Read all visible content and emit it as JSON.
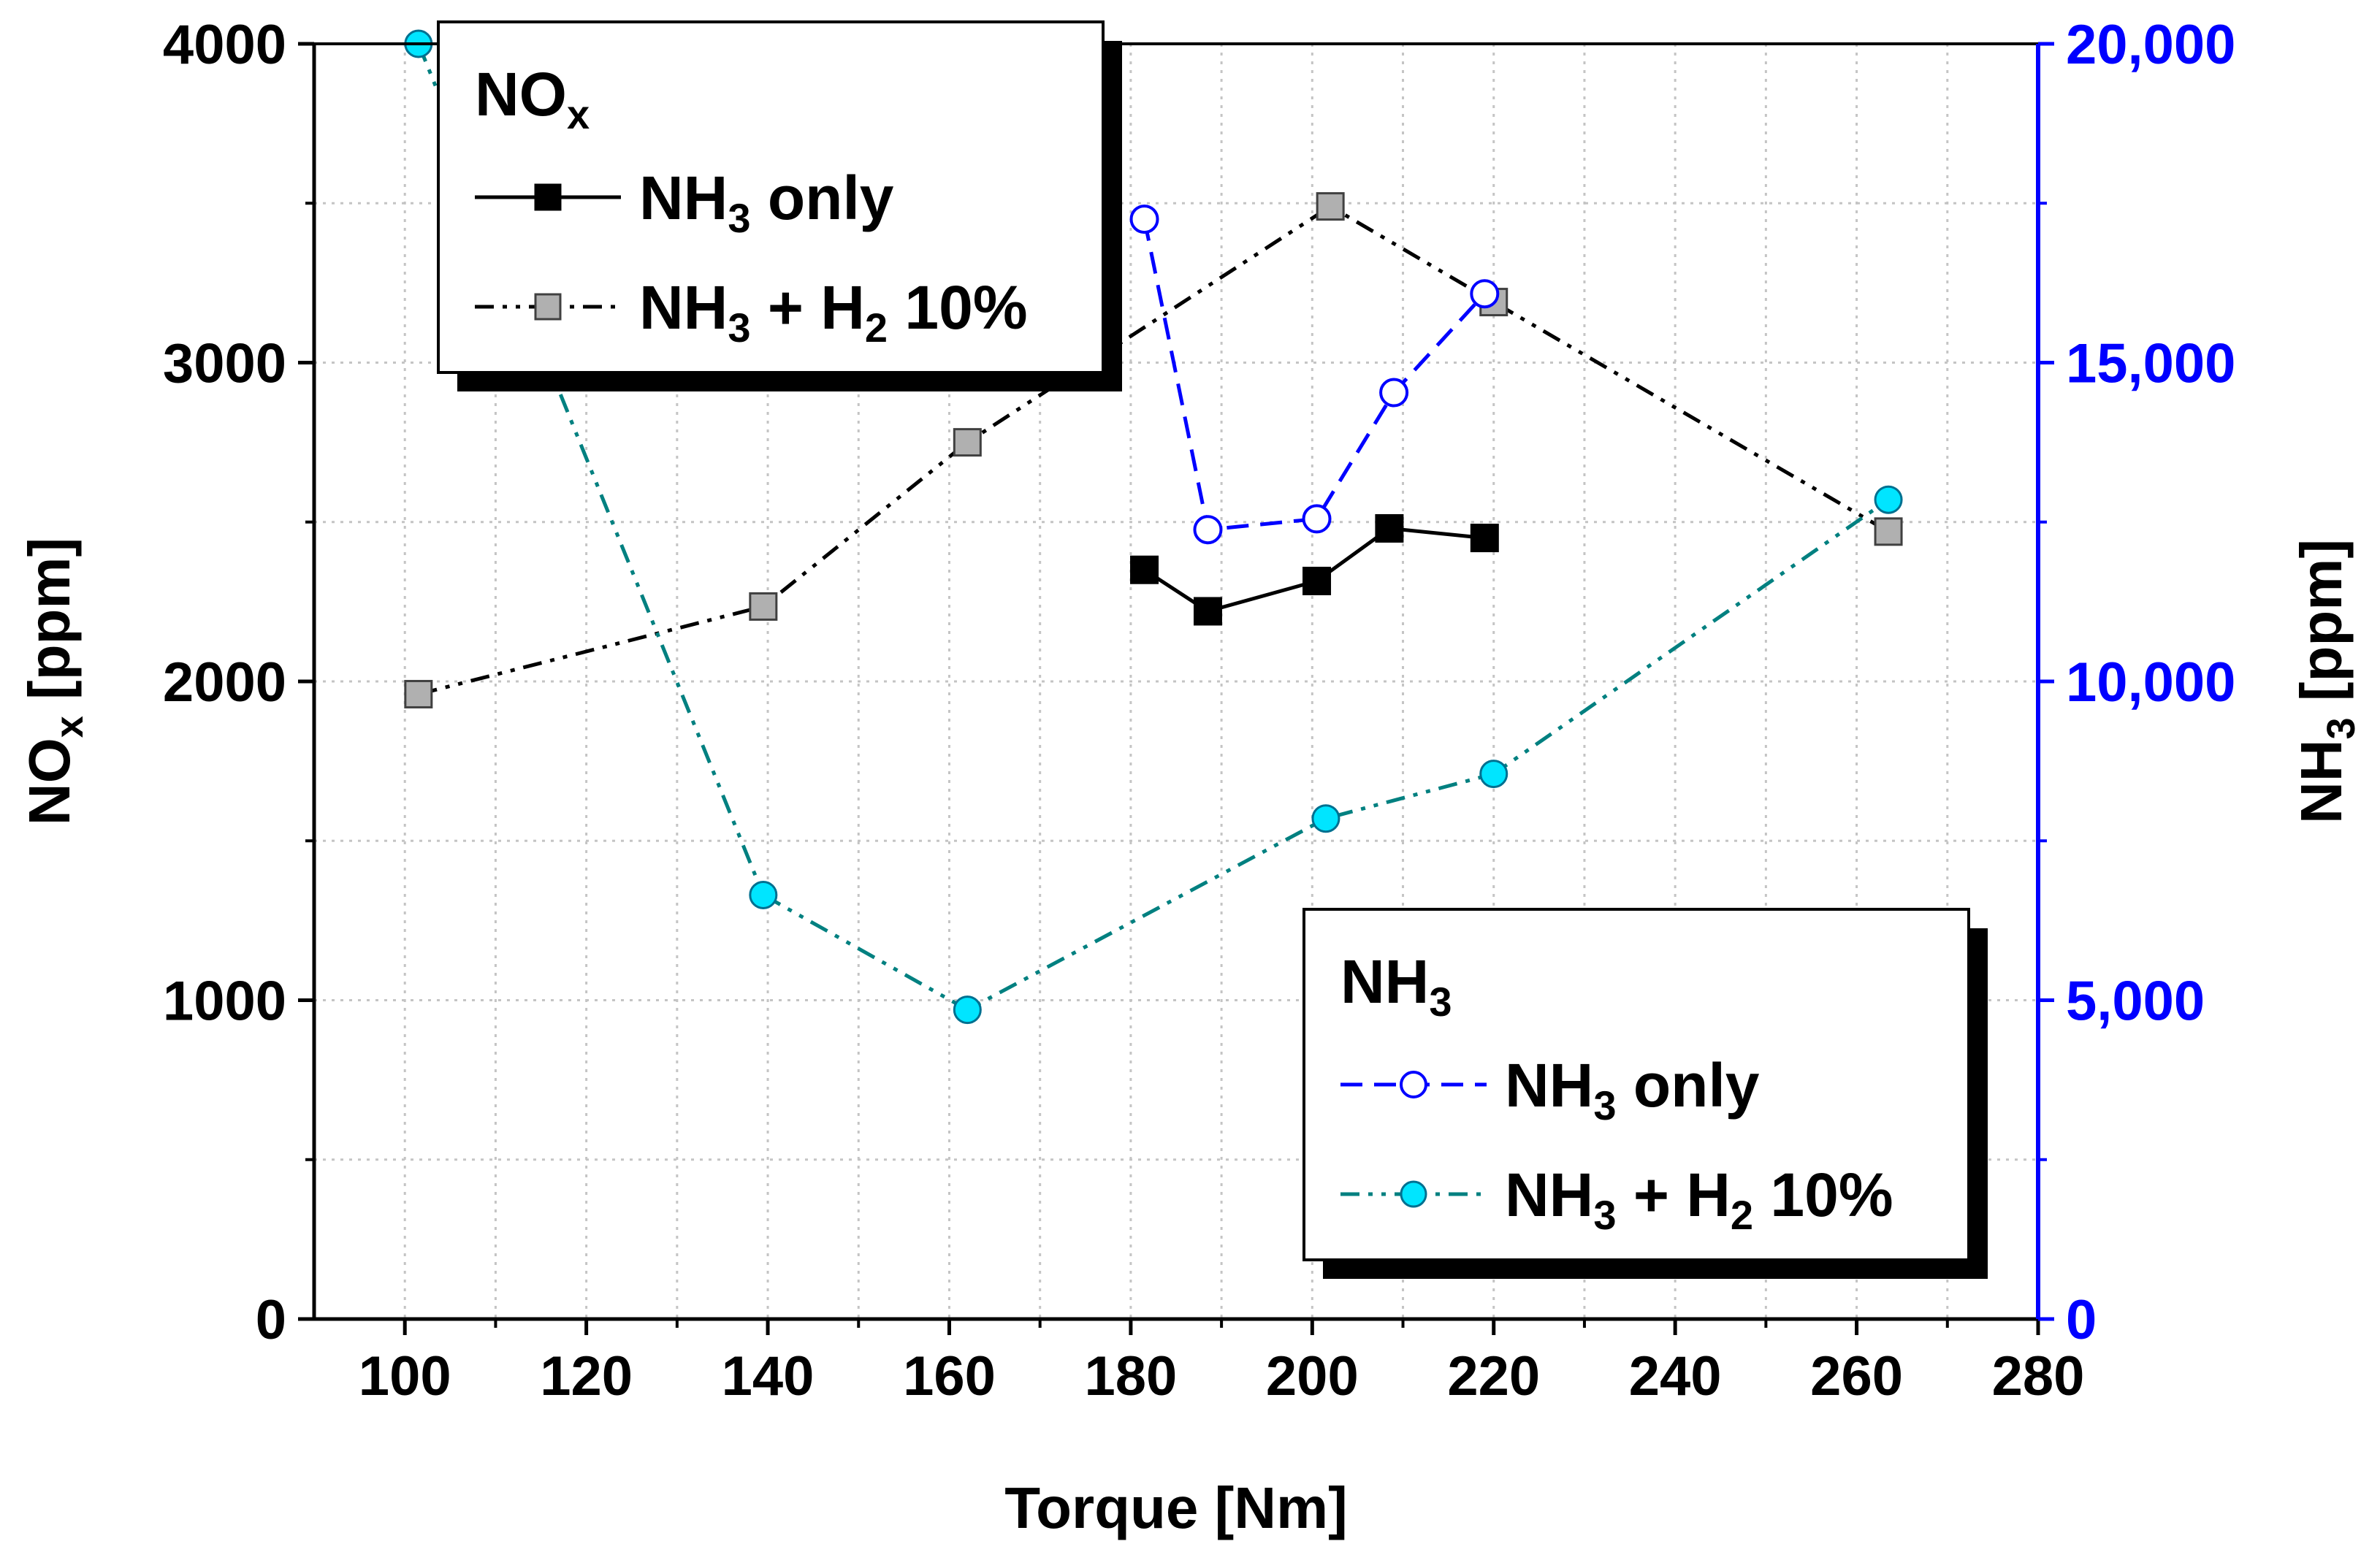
{
  "chart_data": {
    "type": "line",
    "xlabel": "Torque [Nm]",
    "ylabel": {
      "main": "NO",
      "sub": "x",
      "unit": " [ppm]"
    },
    "y2label": {
      "main": "NH",
      "sub": "3",
      "unit": " [ppm]"
    },
    "xlim": [
      90,
      280
    ],
    "ylim": [
      0,
      4000
    ],
    "y2lim": [
      0,
      20000
    ],
    "grid": true,
    "x_ticks": [
      "100",
      "120",
      "140",
      "160",
      "180",
      "200",
      "220",
      "240",
      "260",
      "280"
    ],
    "y_ticks": [
      "0",
      "1000",
      "2000",
      "3000",
      "4000"
    ],
    "y2_ticks": [
      "0",
      "5,000",
      "10,000",
      "15,000",
      "20,000"
    ],
    "colors": {
      "black": "#000000",
      "blue": "#0000ff",
      "teal": "#008080",
      "cyan": "#00e5ff",
      "gray": "#b0b0b0"
    },
    "series": [
      {
        "name": "NOx - NH3 only",
        "axis": "left",
        "style": "solid",
        "marker": "filled-square",
        "x": [
          181.5,
          188.5,
          200.5,
          208.5,
          219
        ],
        "y": [
          2350,
          2220,
          2315,
          2480,
          2450
        ]
      },
      {
        "name": "NOx - NH3 + H2 10%",
        "axis": "left",
        "style": "dash-dot-dot",
        "marker": "gray-square",
        "x": [
          101.5,
          139.5,
          162,
          202,
          220,
          263.5
        ],
        "y": [
          1960,
          2235,
          2750,
          3490,
          3190,
          2470
        ]
      },
      {
        "name": "NH3 - NH3 only",
        "axis": "right",
        "style": "dashed",
        "marker": "open-circle",
        "x": [
          181.5,
          188.5,
          200.5,
          209,
          219
        ],
        "y": [
          17250,
          12380,
          12550,
          14530,
          16080
        ]
      },
      {
        "name": "NH3 - NH3 + H2 10%",
        "axis": "right",
        "style": "dash-dot-dot",
        "marker": "cyan-circle",
        "x": [
          101.5,
          139.5,
          162,
          201.5,
          220,
          263.5
        ],
        "y": [
          20000,
          6650,
          4850,
          7850,
          8550,
          12850
        ]
      }
    ],
    "legends": [
      {
        "title": {
          "main": "NO",
          "sub": "x"
        },
        "position": "top-left",
        "entries": [
          {
            "series": 0,
            "label": {
              "pre": "NH",
              "sub": "3",
              "post": " only"
            }
          },
          {
            "series": 1,
            "label": {
              "pre": "NH",
              "sub": "3",
              "mid": " + H",
              "sub2": "2",
              "post": " 10%"
            }
          }
        ]
      },
      {
        "title": {
          "main": "NH",
          "sub": "3"
        },
        "position": "bottom-right",
        "entries": [
          {
            "series": 2,
            "label": {
              "pre": "NH",
              "sub": "3",
              "post": " only"
            }
          },
          {
            "series": 3,
            "label": {
              "pre": "NH",
              "sub": "3",
              "mid": " + H",
              "sub2": "2",
              "post": " 10%"
            }
          }
        ]
      }
    ]
  }
}
